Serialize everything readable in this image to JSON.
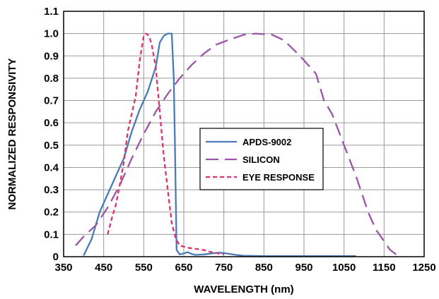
{
  "chart_data": {
    "type": "line",
    "title": "",
    "xlabel": "WAVELENGTH (nm)",
    "ylabel": "NORMALIZED RESPONSIVITY",
    "xlim": [
      350,
      1250
    ],
    "ylim": [
      0,
      1.1
    ],
    "x_ticks": [
      350,
      450,
      550,
      650,
      750,
      850,
      950,
      1050,
      1150,
      1250
    ],
    "y_ticks": [
      0,
      0.1,
      0.2,
      0.3,
      0.4,
      0.5,
      0.6,
      0.7,
      0.8,
      0.9,
      1.0,
      1.1
    ],
    "x_tick_labels": [
      "350",
      "450",
      "550",
      "650",
      "750",
      "850",
      "950",
      "1050",
      "1150",
      "1250"
    ],
    "y_tick_labels": [
      "0",
      "0.1",
      "0.2",
      "0.3",
      "0.4",
      "0.5",
      "0.6",
      "0.7",
      "0.8",
      "0.9",
      "1.0",
      "1.1"
    ],
    "grid": true,
    "legend": "center",
    "series": [
      {
        "name": "APDS-9002",
        "color": "#4a7ab8",
        "dash": "solid",
        "x": [
          400,
          420,
          440,
          460,
          480,
          500,
          520,
          540,
          560,
          580,
          590,
          600,
          610,
          620,
          625,
          628,
          632,
          640,
          650,
          660,
          670,
          680,
          700,
          720,
          740,
          760,
          780,
          800,
          850,
          900,
          1000,
          1080
        ],
        "y": [
          0.005,
          0.08,
          0.2,
          0.28,
          0.36,
          0.44,
          0.56,
          0.66,
          0.74,
          0.85,
          0.96,
          0.99,
          1.0,
          1.0,
          0.8,
          0.5,
          0.03,
          0.01,
          0.015,
          0.02,
          0.012,
          0.008,
          0.01,
          0.015,
          0.018,
          0.014,
          0.008,
          0.004,
          0.003,
          0.003,
          0.003,
          0.003
        ]
      },
      {
        "name": "SILICON",
        "color": "#9a55a8",
        "dash": "long",
        "x": [
          380,
          400,
          430,
          460,
          490,
          520,
          550,
          580,
          610,
          640,
          670,
          700,
          730,
          760,
          800,
          830,
          870,
          900,
          940,
          980,
          1000,
          1020,
          1050,
          1080,
          1110,
          1130,
          1150,
          1165,
          1180
        ],
        "y": [
          0.05,
          0.09,
          0.14,
          0.22,
          0.32,
          0.44,
          0.55,
          0.65,
          0.73,
          0.8,
          0.86,
          0.91,
          0.95,
          0.97,
          0.995,
          1.0,
          0.995,
          0.97,
          0.9,
          0.82,
          0.7,
          0.64,
          0.5,
          0.36,
          0.2,
          0.12,
          0.07,
          0.03,
          0.01
        ]
      },
      {
        "name": "EYE RESPONSE",
        "color": "#e0306a",
        "dash": "short",
        "x": [
          460,
          470,
          480,
          490,
          500,
          510,
          520,
          530,
          540,
          550,
          555,
          560,
          565,
          570,
          580,
          590,
          600,
          610,
          620,
          630,
          640,
          660,
          680,
          700,
          720,
          750
        ],
        "y": [
          0.1,
          0.17,
          0.23,
          0.32,
          0.42,
          0.56,
          0.64,
          0.72,
          0.88,
          0.99,
          1.0,
          0.995,
          0.98,
          0.95,
          0.85,
          0.65,
          0.45,
          0.3,
          0.15,
          0.08,
          0.05,
          0.04,
          0.035,
          0.03,
          0.02,
          0.01
        ]
      }
    ]
  }
}
